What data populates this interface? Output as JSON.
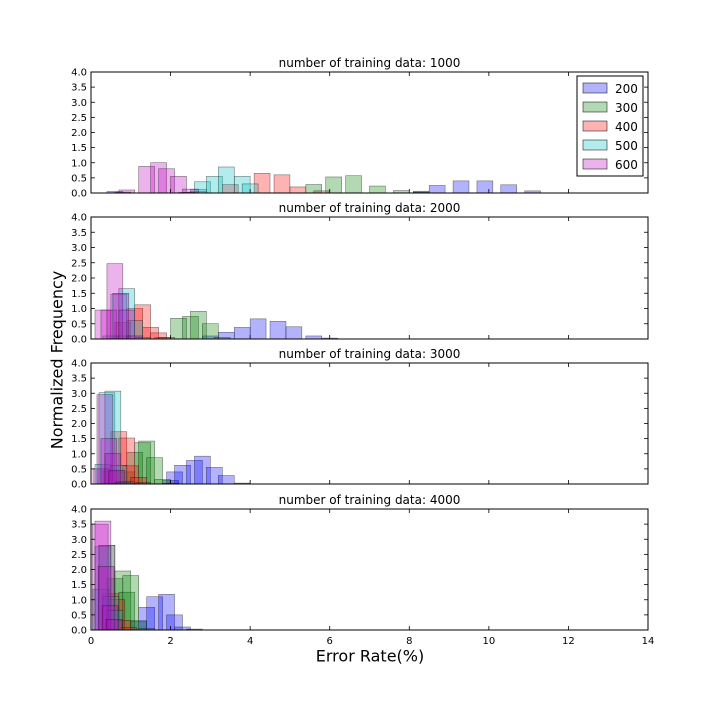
{
  "figure": {
    "ylabel": "Normalized Frequency",
    "xlabel": "Error Rate(%)"
  },
  "chart_data": [
    {
      "type": "bar",
      "title": "number of training data: 1000",
      "xlim": [
        0,
        14
      ],
      "ylim": [
        0,
        4
      ],
      "yticks": [
        "0.0",
        "0.5",
        "1.0",
        "1.5",
        "2.0",
        "2.5",
        "3.0",
        "3.5",
        "4.0"
      ],
      "xticks": [],
      "legend": {
        "placement": "top-right",
        "entries": [
          "200",
          "300",
          "400",
          "500",
          "600"
        ]
      },
      "colors": [
        "#0000ff",
        "#008000",
        "#ff0000",
        "#00bfbf",
        "#bf00bf"
      ],
      "series": [
        {
          "name": "200",
          "bins": [
            [
              0.4,
              0.05
            ],
            [
              2.3,
              0.02
            ],
            [
              8.1,
              0.06
            ],
            [
              8.5,
              0.25
            ],
            [
              9.1,
              0.4
            ],
            [
              9.7,
              0.4
            ],
            [
              10.3,
              0.27
            ],
            [
              10.9,
              0.07
            ]
          ]
        },
        {
          "name": "300",
          "bins": [
            [
              2.2,
              0.02
            ],
            [
              5.4,
              0.28
            ],
            [
              5.9,
              0.53
            ],
            [
              6.4,
              0.57
            ],
            [
              7.0,
              0.23
            ],
            [
              7.6,
              0.08
            ],
            [
              8.1,
              0.03
            ]
          ]
        },
        {
          "name": "400",
          "bins": [
            [
              2.5,
              0.05
            ],
            [
              3.3,
              0.28
            ],
            [
              4.1,
              0.65
            ],
            [
              4.6,
              0.6
            ],
            [
              5.0,
              0.2
            ],
            [
              5.6,
              0.07
            ]
          ]
        },
        {
          "name": "500",
          "bins": [
            [
              2.5,
              0.12
            ],
            [
              2.6,
              0.37
            ],
            [
              2.9,
              0.55
            ],
            [
              3.2,
              0.86
            ],
            [
              3.6,
              0.55
            ],
            [
              3.8,
              0.3
            ]
          ]
        },
        {
          "name": "600",
          "bins": [
            [
              0.6,
              0.03
            ],
            [
              0.7,
              0.1
            ],
            [
              1.2,
              0.88
            ],
            [
              1.5,
              1.0
            ],
            [
              1.7,
              0.8
            ],
            [
              2.0,
              0.55
            ],
            [
              2.3,
              0.13
            ]
          ]
        }
      ]
    },
    {
      "type": "bar",
      "title": "number of training data: 2000",
      "xlim": [
        0,
        14
      ],
      "ylim": [
        0,
        4
      ],
      "yticks": [
        "0.0",
        "0.5",
        "1.0",
        "1.5",
        "2.0",
        "2.5",
        "3.0",
        "3.5",
        "4.0"
      ],
      "xticks": [],
      "colors": [
        "#0000ff",
        "#008000",
        "#ff0000",
        "#00bfbf",
        "#bf00bf"
      ],
      "series": [
        {
          "name": "200",
          "bins": [
            [
              2.8,
              0.1
            ],
            [
              3.2,
              0.22
            ],
            [
              3.6,
              0.38
            ],
            [
              4.0,
              0.66
            ],
            [
              4.5,
              0.58
            ],
            [
              4.9,
              0.4
            ],
            [
              5.4,
              0.1
            ],
            [
              5.8,
              0.03
            ]
          ]
        },
        {
          "name": "300",
          "bins": [
            [
              0.6,
              0.1
            ],
            [
              1.6,
              0.05
            ],
            [
              2.0,
              0.68
            ],
            [
              2.3,
              0.74
            ],
            [
              2.5,
              0.91
            ],
            [
              2.8,
              0.5
            ],
            [
              3.1,
              0.05
            ]
          ]
        },
        {
          "name": "400",
          "bins": [
            [
              0.6,
              0.55
            ],
            [
              0.9,
              1.0
            ],
            [
              1.1,
              1.12
            ],
            [
              1.3,
              0.38
            ],
            [
              1.5,
              0.2
            ],
            [
              1.7,
              0.05
            ]
          ]
        },
        {
          "name": "500",
          "bins": [
            [
              0.3,
              0.1
            ],
            [
              0.5,
              1.47
            ],
            [
              0.7,
              1.65
            ],
            [
              0.9,
              0.6
            ],
            [
              1.1,
              0.05
            ]
          ]
        },
        {
          "name": "600",
          "bins": [
            [
              0.1,
              0.95
            ],
            [
              0.25,
              0.95
            ],
            [
              0.4,
              2.47
            ],
            [
              0.55,
              1.5
            ],
            [
              0.7,
              0.95
            ],
            [
              0.9,
              0.1
            ]
          ]
        }
      ]
    },
    {
      "type": "bar",
      "title": "number of training data: 3000",
      "xlim": [
        0,
        14
      ],
      "ylim": [
        0,
        4
      ],
      "yticks": [
        "0.0",
        "0.5",
        "1.0",
        "1.5",
        "2.0",
        "2.5",
        "3.0",
        "3.5",
        "4.0"
      ],
      "xticks": [],
      "colors": [
        "#0000ff",
        "#008000",
        "#ff0000",
        "#00bfbf",
        "#bf00bf"
      ],
      "series": [
        {
          "name": "200",
          "bins": [
            [
              1.8,
              0.12
            ],
            [
              1.9,
              0.4
            ],
            [
              2.1,
              0.62
            ],
            [
              2.4,
              0.78
            ],
            [
              2.6,
              0.92
            ],
            [
              2.9,
              0.55
            ],
            [
              3.2,
              0.28
            ],
            [
              3.6,
              0.03
            ]
          ]
        },
        {
          "name": "300",
          "bins": [
            [
              0.7,
              0.4
            ],
            [
              0.9,
              1.05
            ],
            [
              1.1,
              1.37
            ],
            [
              1.2,
              1.42
            ],
            [
              1.4,
              0.87
            ],
            [
              1.6,
              0.15
            ],
            [
              1.8,
              0.03
            ]
          ]
        },
        {
          "name": "400",
          "bins": [
            [
              0.3,
              0.42
            ],
            [
              0.5,
              1.73
            ],
            [
              0.7,
              1.52
            ],
            [
              0.8,
              0.6
            ],
            [
              1.0,
              0.22
            ],
            [
              1.1,
              0.05
            ]
          ]
        },
        {
          "name": "500",
          "bins": [
            [
              0.1,
              0.65
            ],
            [
              0.2,
              3.02
            ],
            [
              0.35,
              3.07
            ],
            [
              0.5,
              0.62
            ],
            [
              0.65,
              0.08
            ]
          ]
        },
        {
          "name": "600",
          "bins": [
            [
              0.05,
              0.5
            ],
            [
              0.15,
              2.95
            ],
            [
              0.25,
              1.5
            ],
            [
              0.35,
              1.0
            ],
            [
              0.45,
              0.45
            ],
            [
              0.6,
              0.05
            ]
          ]
        }
      ]
    },
    {
      "type": "bar",
      "title": "number of training data: 4000",
      "xlim": [
        0,
        14
      ],
      "ylim": [
        0,
        4
      ],
      "yticks": [
        "0.0",
        "0.5",
        "1.0",
        "1.5",
        "2.0",
        "2.5",
        "3.0",
        "3.5",
        "4.0"
      ],
      "xticks": [
        "0",
        "2",
        "4",
        "6",
        "8",
        "10",
        "12",
        "14"
      ],
      "colors": [
        "#0000ff",
        "#008000",
        "#ff0000",
        "#00bfbf",
        "#bf00bf"
      ],
      "series": [
        {
          "name": "200",
          "bins": [
            [
              1.0,
              0.3
            ],
            [
              1.2,
              0.75
            ],
            [
              1.4,
              1.1
            ],
            [
              1.7,
              1.18
            ],
            [
              1.9,
              0.5
            ],
            [
              2.1,
              0.1
            ],
            [
              2.4,
              0.03
            ]
          ]
        },
        {
          "name": "300",
          "bins": [
            [
              0.4,
              1.7
            ],
            [
              0.6,
              1.95
            ],
            [
              0.7,
              1.25
            ],
            [
              0.8,
              1.8
            ],
            [
              1.0,
              0.3
            ],
            [
              1.2,
              0.05
            ]
          ]
        },
        {
          "name": "400",
          "bins": [
            [
              0.2,
              2.8
            ],
            [
              0.3,
              1.2
            ],
            [
              0.45,
              1.0
            ],
            [
              0.6,
              0.32
            ],
            [
              0.75,
              0.08
            ]
          ]
        },
        {
          "name": "500",
          "bins": [
            [
              0.05,
              1.35
            ],
            [
              0.1,
              2.75
            ],
            [
              0.2,
              2.8
            ],
            [
              0.3,
              1.1
            ],
            [
              0.4,
              0.65
            ]
          ]
        },
        {
          "name": "600",
          "bins": [
            [
              0.03,
              3.5
            ],
            [
              0.1,
              3.6
            ],
            [
              0.18,
              2.1
            ],
            [
              0.28,
              0.8
            ],
            [
              0.38,
              0.35
            ]
          ]
        }
      ]
    }
  ]
}
